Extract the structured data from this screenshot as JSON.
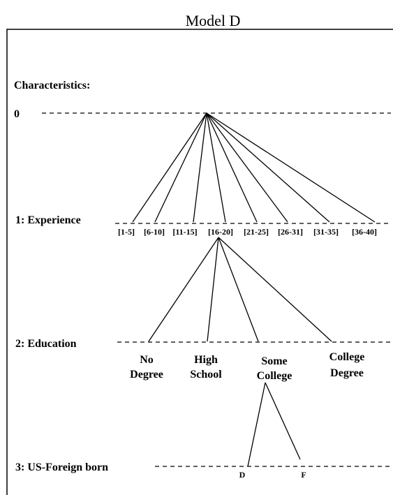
{
  "title": "Model D",
  "heading": "Characteristics:",
  "levels": [
    {
      "label": "0"
    },
    {
      "label": "1: Experience",
      "nodes": [
        "[1-5]",
        "[6-10]",
        "[11-15]",
        "[16-20]",
        "[21-25]",
        "[26-31]",
        "[31-35]",
        "[36-40]"
      ]
    },
    {
      "label": "2: Education",
      "nodes": [
        [
          "No",
          "Degree"
        ],
        [
          "High",
          "School"
        ],
        [
          "Some",
          "College"
        ],
        [
          "College",
          "Degree"
        ]
      ]
    },
    {
      "label": "3: US-Foreign born",
      "nodes": [
        "D",
        "F"
      ]
    }
  ]
}
